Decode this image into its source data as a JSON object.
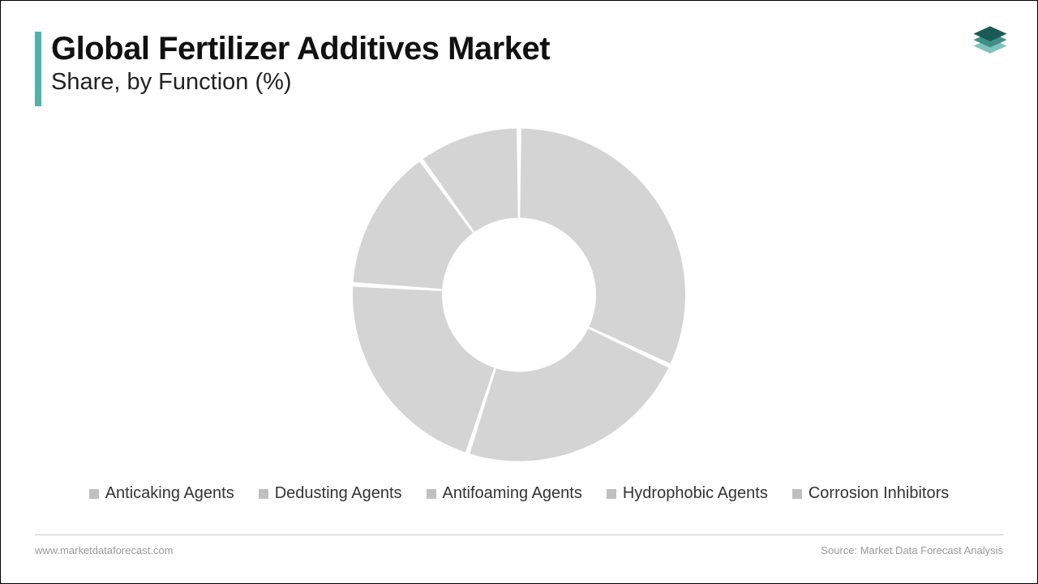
{
  "header": {
    "title": "Global Fertilizer Additives Market",
    "subtitle": "Share, by Function (%)",
    "accent_color": "#4fb3aa"
  },
  "logo": {
    "top_color": "#1a5a55",
    "mid_color": "#3f8e87",
    "bottom_color": "#7fc4bd"
  },
  "chart": {
    "type": "donut",
    "outer_radius": 205,
    "inner_radius": 95,
    "gap_deg": 1.6,
    "background_color": "#ffffff",
    "segment_color": "#d4d4d4",
    "segments": [
      {
        "label": "Anticaking Agents",
        "value": 32,
        "color": "#d4d4d4"
      },
      {
        "label": "Dedusting Agents",
        "value": 23,
        "color": "#d4d4d4"
      },
      {
        "label": "Antifoaming Agents",
        "value": 21,
        "color": "#d4d4d4"
      },
      {
        "label": "Hydrophobic Agents",
        "value": 14,
        "color": "#d4d4d4"
      },
      {
        "label": "Corrosion Inhibitors",
        "value": 10,
        "color": "#d4d4d4"
      }
    ]
  },
  "legend": {
    "swatch_color": "#c0c0c0",
    "font_size": 20,
    "text_color": "#333333"
  },
  "footer": {
    "left": "www.marketdataforecast.com",
    "right": "Source: Market Data Forecast Analysis",
    "line_color": "#c9c9c9",
    "text_color": "#9a9a9a"
  }
}
